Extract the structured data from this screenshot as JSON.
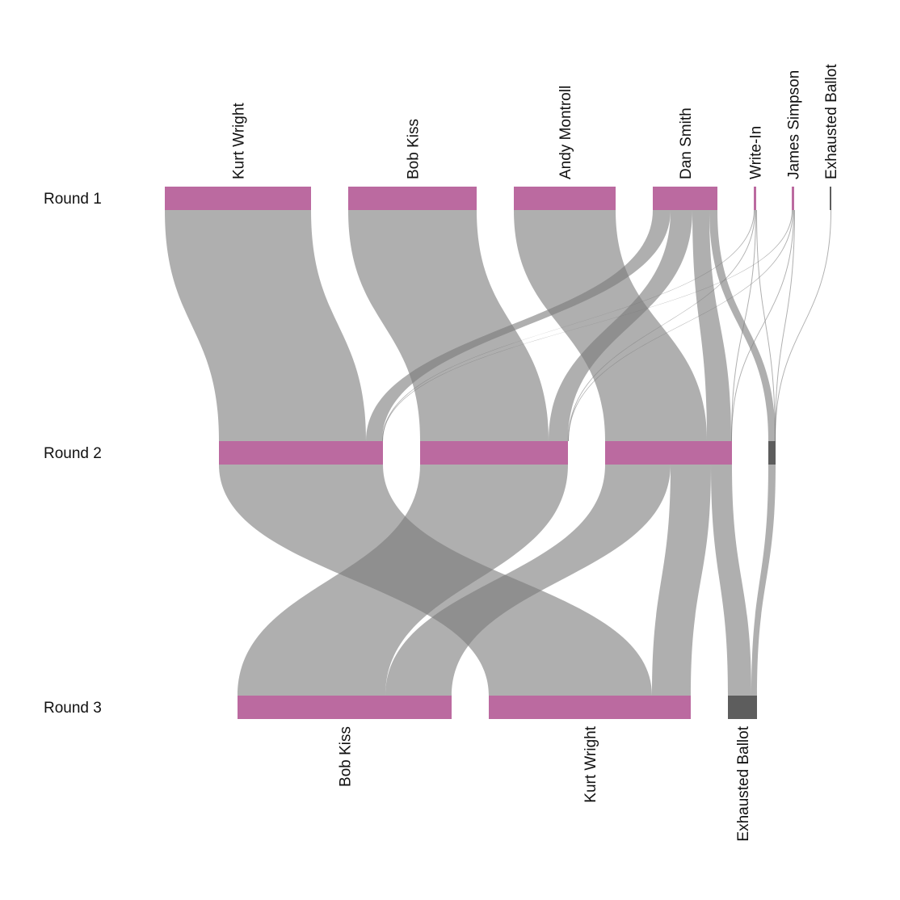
{
  "colors": {
    "candidate": "#bb6aa0",
    "exhausted": "#5d5d5d",
    "flow": "#7a7a7a",
    "text": "#111111"
  },
  "rounds": [
    "Round 1",
    "Round 2",
    "Round 3"
  ],
  "round_nodes": [
    [
      {
        "id": "r1-kurt-wright",
        "label": "Kurt Wright",
        "kind": "candidate"
      },
      {
        "id": "r1-bob-kiss",
        "label": "Bob Kiss",
        "kind": "candidate"
      },
      {
        "id": "r1-andy-montroll",
        "label": "Andy Montroll",
        "kind": "candidate"
      },
      {
        "id": "r1-dan-smith",
        "label": "Dan Smith",
        "kind": "candidate"
      },
      {
        "id": "r1-write-in",
        "label": "Write-In",
        "kind": "candidate"
      },
      {
        "id": "r1-james-simpson",
        "label": "James Simpson",
        "kind": "candidate"
      },
      {
        "id": "r1-exhausted-ballot",
        "label": "Exhausted Ballot",
        "kind": "exhausted"
      }
    ],
    [
      {
        "id": "r2-kurt-wright",
        "label": "",
        "kind": "candidate"
      },
      {
        "id": "r2-bob-kiss",
        "label": "",
        "kind": "candidate"
      },
      {
        "id": "r2-andy-montroll",
        "label": "",
        "kind": "candidate"
      },
      {
        "id": "r2-exhausted-ballot",
        "label": "",
        "kind": "exhausted"
      }
    ],
    [
      {
        "id": "r3-bob-kiss",
        "label": "Bob Kiss",
        "kind": "candidate"
      },
      {
        "id": "r3-kurt-wright",
        "label": "Kurt Wright",
        "kind": "candidate"
      },
      {
        "id": "r3-exhausted-ballot",
        "label": "Exhausted Ballot",
        "kind": "exhausted"
      }
    ]
  ],
  "flows": [
    {
      "from": "Kurt Wright",
      "to": "Kurt Wright",
      "round": 1,
      "value": 2951
    },
    {
      "from": "Bob Kiss",
      "to": "Bob Kiss",
      "round": 1,
      "value": 2585
    },
    {
      "from": "Andy Montroll",
      "to": "Andy Montroll",
      "round": 1,
      "value": 2063
    },
    {
      "from": "Dan Smith",
      "to": "Kurt Wright",
      "round": 1,
      "value": 343
    },
    {
      "from": "Dan Smith",
      "to": "Bob Kiss",
      "round": 1,
      "value": 126
    },
    {
      "from": "Dan Smith",
      "to": "Andy Montroll",
      "round": 1,
      "value": 476
    },
    {
      "from": "Dan Smith",
      "to": "Exhausted Ballot",
      "round": 1,
      "value": 331
    },
    {
      "from": "Write-In",
      "to": "Kurt Wright",
      "round": 1,
      "value": 7
    },
    {
      "from": "Write-In",
      "to": "Bob Kiss",
      "round": 1,
      "value": 9
    },
    {
      "from": "Write-In",
      "to": "Andy Montroll",
      "round": 1,
      "value": 9
    },
    {
      "from": "Write-In",
      "to": "Exhausted Ballot",
      "round": 1,
      "value": 7
    },
    {
      "from": "James Simpson",
      "to": "Kurt Wright",
      "round": 1,
      "value": 7
    },
    {
      "from": "James Simpson",
      "to": "Bob Kiss",
      "round": 1,
      "value": 12
    },
    {
      "from": "James Simpson",
      "to": "Andy Montroll",
      "round": 1,
      "value": 13
    },
    {
      "from": "James Simpson",
      "to": "Exhausted Ballot",
      "round": 1,
      "value": 8
    },
    {
      "from": "Exhausted Ballot",
      "to": "Exhausted Ballot",
      "round": 1,
      "value": 10
    },
    {
      "from": "Kurt Wright",
      "to": "Kurt Wright",
      "round": 2,
      "value": 3294
    },
    {
      "from": "Bob Kiss",
      "to": "Bob Kiss",
      "round": 2,
      "value": 2981
    },
    {
      "from": "Andy Montroll",
      "to": "Bob Kiss",
      "round": 2,
      "value": 1332
    },
    {
      "from": "Andy Montroll",
      "to": "Kurt Wright",
      "round": 2,
      "value": 767
    },
    {
      "from": "Andy Montroll",
      "to": "Exhausted Ballot",
      "round": 2,
      "value": 461
    },
    {
      "from": "Exhausted Ballot",
      "to": "Exhausted Ballot",
      "round": 2,
      "value": 137
    }
  ]
}
